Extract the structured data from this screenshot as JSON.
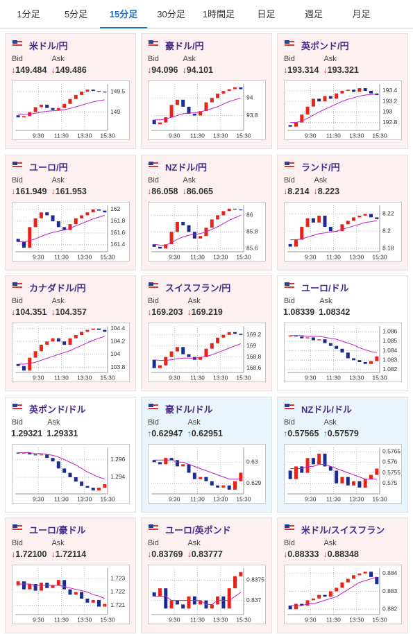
{
  "tabs": {
    "items": [
      "1分足",
      "5分足",
      "15分足",
      "30分足",
      "1時間足",
      "日足",
      "週足",
      "月足"
    ],
    "active": 2
  },
  "labels": {
    "bid": "Bid",
    "ask": "Ask"
  },
  "time_axis": {
    "xlim": [
      0,
      16
    ],
    "xticks": [
      {
        "value": 4,
        "label": "9:30"
      },
      {
        "value": 8,
        "label": "11:30"
      },
      {
        "value": 12,
        "label": "13:30"
      },
      {
        "value": 16,
        "label": "15:30"
      }
    ]
  },
  "colors": {
    "up": "#e8231a",
    "down": "#1b2b8f",
    "ma": "#c020c0",
    "arrow_down": "#d0342c",
    "arrow_up": "#2a8fc4",
    "bg_down": "#fdf0f0",
    "bg_up": "#eaf4fb",
    "bg_none": "#ffffff"
  },
  "cards": [
    {
      "title": "米ドル/円",
      "state": "down",
      "arrow": "↓",
      "bid": "149.484",
      "ask": "149.486",
      "chart": {
        "ylim": [
          148.55,
          149.69
        ],
        "yticks": [
          149,
          149.5
        ],
        "open": 148.92,
        "closes": [
          148.87,
          148.9,
          149.0,
          149.12,
          149.18,
          149.1,
          149.05,
          149.1,
          149.2,
          149.32,
          149.42,
          149.5,
          149.55,
          149.52,
          149.5,
          149.48
        ],
        "ma": [
          148.95,
          148.94,
          148.95,
          148.97,
          149.0,
          149.02,
          149.03,
          149.04,
          149.06,
          149.09,
          149.13,
          149.17,
          149.21,
          149.25,
          149.28,
          149.3
        ]
      }
    },
    {
      "title": "豪ドル/円",
      "state": "down",
      "arrow": "↓",
      "bid": "94.096",
      "ask": "94.101",
      "chart": {
        "ylim": [
          93.63,
          94.16
        ],
        "yticks": [
          93.8,
          94
        ],
        "open": 93.75,
        "closes": [
          93.7,
          93.72,
          93.78,
          93.92,
          93.98,
          93.9,
          93.82,
          93.8,
          93.85,
          93.95,
          94.0,
          94.05,
          94.08,
          94.1,
          94.12,
          94.1
        ],
        "ma": [
          93.75,
          93.75,
          93.76,
          93.78,
          93.8,
          93.82,
          93.83,
          93.83,
          93.84,
          93.86,
          93.88,
          93.9,
          93.93,
          93.96,
          93.98,
          94.0
        ]
      }
    },
    {
      "title": "英ポンド/円",
      "state": "down",
      "arrow": "↓",
      "bid": "193.314",
      "ask": "193.321",
      "chart": {
        "ylim": [
          192.65,
          193.53
        ],
        "yticks": [
          192.8,
          193,
          193.2,
          193.4
        ],
        "open": 192.75,
        "closes": [
          192.72,
          192.8,
          192.95,
          193.1,
          193.25,
          193.2,
          193.3,
          193.25,
          193.35,
          193.4,
          193.42,
          193.38,
          193.45,
          193.4,
          193.35,
          193.32
        ],
        "ma": [
          192.8,
          192.8,
          192.83,
          192.88,
          192.94,
          193.0,
          193.05,
          193.1,
          193.15,
          193.2,
          193.24,
          193.27,
          193.3,
          193.32,
          193.33,
          193.34
        ]
      }
    },
    {
      "title": "ユーロ/円",
      "state": "down",
      "arrow": "↓",
      "bid": "161.949",
      "ask": "161.953",
      "chart": {
        "ylim": [
          161.28,
          162.07
        ],
        "yticks": [
          161.4,
          161.6,
          161.8,
          162
        ],
        "open": 161.5,
        "closes": [
          161.45,
          161.35,
          161.7,
          161.85,
          161.95,
          161.9,
          161.8,
          161.7,
          161.65,
          161.75,
          161.85,
          161.9,
          161.95,
          162.0,
          161.98,
          161.95
        ],
        "ma": [
          161.45,
          161.45,
          161.47,
          161.5,
          161.54,
          161.58,
          161.61,
          161.63,
          161.65,
          161.68,
          161.72,
          161.76,
          161.8,
          161.84,
          161.87,
          161.9
        ]
      }
    },
    {
      "title": "NZドル/円",
      "state": "down",
      "arrow": "↓",
      "bid": "86.058",
      "ask": "86.065",
      "chart": {
        "ylim": [
          85.56,
          86.12
        ],
        "yticks": [
          85.6,
          85.8,
          86
        ],
        "open": 85.65,
        "closes": [
          85.62,
          85.6,
          85.65,
          85.8,
          85.92,
          85.88,
          85.8,
          85.72,
          85.75,
          85.85,
          85.95,
          86.0,
          86.05,
          86.08,
          86.07,
          86.06
        ],
        "ma": [
          85.65,
          85.64,
          85.64,
          85.67,
          85.71,
          85.74,
          85.76,
          85.77,
          85.78,
          85.8,
          85.83,
          85.86,
          85.9,
          85.94,
          85.97,
          86.0
        ]
      }
    },
    {
      "title": "ランド/円",
      "state": "down",
      "arrow": "↓",
      "bid": "8.214",
      "ask": "8.223",
      "chart": {
        "ylim": [
          8.176,
          8.23
        ],
        "yticks": [
          8.18,
          8.2,
          8.22
        ],
        "open": 8.185,
        "closes": [
          8.182,
          8.19,
          8.205,
          8.215,
          8.21,
          8.218,
          8.205,
          8.2,
          8.2,
          8.208,
          8.212,
          8.216,
          8.218,
          8.22,
          8.216,
          8.214
        ],
        "ma": [
          8.19,
          8.19,
          8.191,
          8.193,
          8.195,
          8.197,
          8.198,
          8.199,
          8.2,
          8.202,
          8.204,
          8.206,
          8.208,
          8.21,
          8.211,
          8.212
        ]
      }
    },
    {
      "title": "カナダドル/円",
      "state": "down",
      "arrow": "↓",
      "bid": "104.351",
      "ask": "104.357",
      "chart": {
        "ylim": [
          103.72,
          104.44
        ],
        "yticks": [
          103.8,
          104,
          104.2,
          104.4
        ],
        "open": 103.85,
        "closes": [
          103.82,
          103.75,
          103.95,
          104.05,
          104.15,
          104.2,
          104.25,
          104.2,
          104.15,
          104.25,
          104.3,
          104.35,
          104.38,
          104.4,
          104.38,
          104.35
        ],
        "ma": [
          103.85,
          103.85,
          103.86,
          103.88,
          103.91,
          103.94,
          103.97,
          104.0,
          104.03,
          104.06,
          104.1,
          104.14,
          104.18,
          104.22,
          104.25,
          104.28
        ]
      }
    },
    {
      "title": "スイスフラン/円",
      "state": "down",
      "arrow": "↓",
      "bid": "169.203",
      "ask": "169.219",
      "chart": {
        "ylim": [
          168.52,
          169.36
        ],
        "yticks": [
          168.6,
          168.8,
          169,
          169.2
        ],
        "open": 168.75,
        "closes": [
          168.6,
          168.65,
          168.8,
          168.9,
          168.98,
          168.85,
          168.8,
          168.75,
          168.8,
          168.95,
          169.05,
          169.15,
          169.2,
          169.25,
          169.22,
          169.2
        ],
        "ma": [
          168.75,
          168.74,
          168.74,
          168.75,
          168.77,
          168.78,
          168.78,
          168.78,
          168.79,
          168.81,
          168.84,
          168.88,
          168.92,
          168.96,
          169.0,
          169.04
        ]
      }
    },
    {
      "title": "ユーロ/ドル",
      "state": "none",
      "bid": "1.08339",
      "ask": "1.08342",
      "chart": {
        "ylim": [
          1.0817,
          1.0866
        ],
        "yticks": [
          1.082,
          1.083,
          1.084,
          1.085,
          1.086
        ],
        "open": 1.0855,
        "closes": [
          1.0856,
          1.0855,
          1.0853,
          1.0854,
          1.0851,
          1.0852,
          1.0848,
          1.0845,
          1.0842,
          1.0838,
          1.0832,
          1.083,
          1.0828,
          1.0826,
          1.0829,
          1.0834
        ],
        "ma": [
          1.0856,
          1.0856,
          1.0856,
          1.0855,
          1.0855,
          1.0855,
          1.0854,
          1.0853,
          1.0852,
          1.085,
          1.0848,
          1.0846,
          1.0843,
          1.0841,
          1.0839,
          1.0838
        ]
      }
    },
    {
      "title": "英ポンド/ドル",
      "state": "none",
      "bid": "1.29321",
      "ask": "1.29331",
      "chart": {
        "ylim": [
          1.2921,
          1.2974
        ],
        "yticks": [
          1.294,
          1.296
        ],
        "open": 1.2968,
        "closes": [
          1.2967,
          1.2968,
          1.2966,
          1.2965,
          1.2966,
          1.2962,
          1.2958,
          1.295,
          1.2945,
          1.294,
          1.2935,
          1.293,
          1.2928,
          1.2925,
          1.2928,
          1.2932
        ],
        "ma": [
          1.2968,
          1.2968,
          1.2968,
          1.2967,
          1.2967,
          1.2966,
          1.2965,
          1.2963,
          1.296,
          1.2957,
          1.2954,
          1.295,
          1.2946,
          1.2943,
          1.294,
          1.2938
        ]
      }
    },
    {
      "title": "豪ドル/ドル",
      "state": "up",
      "arrow": "↑",
      "bid": "0.62947",
      "ask": "0.62951",
      "chart": {
        "ylim": [
          0.6285,
          0.6307
        ],
        "yticks": [
          0.629,
          0.63
        ],
        "open": 0.6301,
        "closes": [
          0.63,
          0.6299,
          0.6302,
          0.6301,
          0.6298,
          0.6299,
          0.6295,
          0.6292,
          0.6293,
          0.6291,
          0.6289,
          0.6288,
          0.6289,
          0.6287,
          0.6291,
          0.6295
        ],
        "ma": [
          0.6301,
          0.6301,
          0.6301,
          0.6301,
          0.63,
          0.63,
          0.6299,
          0.6298,
          0.6297,
          0.6296,
          0.6295,
          0.6294,
          0.6293,
          0.6292,
          0.6292,
          0.6292
        ]
      }
    },
    {
      "title": "NZドル/ドル",
      "state": "up",
      "arrow": "↑",
      "bid": "0.57565",
      "ask": "0.57579",
      "chart": {
        "ylim": [
          0.5745,
          0.5767
        ],
        "yticks": [
          0.575,
          0.5755,
          0.576,
          0.5765
        ],
        "open": 0.5756,
        "closes": [
          0.5752,
          0.5758,
          0.5755,
          0.5762,
          0.5759,
          0.5764,
          0.5758,
          0.5756,
          0.575,
          0.5753,
          0.5749,
          0.5751,
          0.5748,
          0.5752,
          0.5754,
          0.5757
        ],
        "ma": [
          0.5757,
          0.5757,
          0.5757,
          0.5758,
          0.5758,
          0.5759,
          0.5759,
          0.5758,
          0.5757,
          0.5756,
          0.5755,
          0.5754,
          0.5753,
          0.5752,
          0.5752,
          0.5752
        ]
      }
    },
    {
      "title": "ユーロ/豪ドル",
      "state": "down",
      "arrow": "↓",
      "bid": "1.72100",
      "ask": "1.72114",
      "chart": {
        "ylim": [
          1.7203,
          1.7238
        ],
        "yticks": [
          1.721,
          1.722,
          1.723
        ],
        "open": 1.7225,
        "closes": [
          1.7228,
          1.7222,
          1.7226,
          1.7221,
          1.7227,
          1.7223,
          1.7225,
          1.7229,
          1.7222,
          1.7218,
          1.722,
          1.7215,
          1.7212,
          1.7214,
          1.7209,
          1.7211
        ],
        "ma": [
          1.7226,
          1.7226,
          1.7226,
          1.7225,
          1.7225,
          1.7225,
          1.7225,
          1.7225,
          1.7224,
          1.7223,
          1.7222,
          1.7221,
          1.722,
          1.7218,
          1.7217,
          1.7215
        ]
      }
    },
    {
      "title": "ユーロ/英ポンド",
      "state": "down",
      "arrow": "↓",
      "bid": "0.83769",
      "ask": "0.83777",
      "chart": {
        "ylim": [
          0.83665,
          0.8378
        ],
        "yticks": [
          0.837,
          0.8375
        ],
        "open": 0.8372,
        "closes": [
          0.8371,
          0.8373,
          0.8368,
          0.837,
          0.8369,
          0.8368,
          0.8371,
          0.8369,
          0.837,
          0.8368,
          0.8369,
          0.8371,
          0.8368,
          0.8373,
          0.8376,
          0.8377
        ],
        "ma": [
          0.8371,
          0.8371,
          0.8371,
          0.837,
          0.837,
          0.837,
          0.837,
          0.837,
          0.837,
          0.8369,
          0.8369,
          0.837,
          0.837,
          0.837,
          0.8371,
          0.8372
        ]
      }
    },
    {
      "title": "米ドル/スイスフラン",
      "state": "down",
      "arrow": "↓",
      "bid": "0.88333",
      "ask": "0.88348",
      "chart": {
        "ylim": [
          0.8817,
          0.8843
        ],
        "yticks": [
          0.882,
          0.883,
          0.884
        ],
        "open": 0.8822,
        "closes": [
          0.882,
          0.8823,
          0.8822,
          0.8825,
          0.8826,
          0.8828,
          0.8827,
          0.883,
          0.8832,
          0.8835,
          0.8837,
          0.8839,
          0.884,
          0.8841,
          0.8838,
          0.8834
        ],
        "ma": [
          0.8822,
          0.8822,
          0.8822,
          0.8823,
          0.8823,
          0.8824,
          0.8825,
          0.8826,
          0.8827,
          0.8829,
          0.8831,
          0.8833,
          0.8835,
          0.8836,
          0.8837,
          0.8838
        ]
      }
    }
  ]
}
